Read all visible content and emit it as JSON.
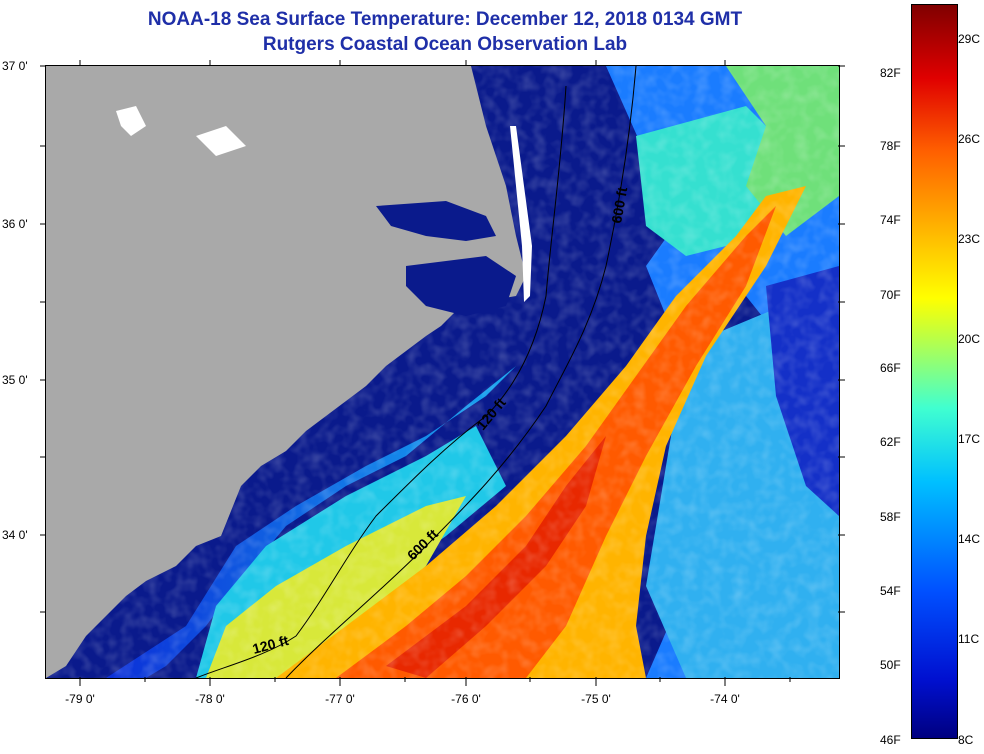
{
  "title": {
    "line1": "NOAA-18 Sea Surface Temperature:  December 12, 2018 0134 GMT",
    "line2": "Rutgers Coastal Ocean Observation Lab"
  },
  "axes": {
    "y_labels": [
      "37 0'",
      "36 0'",
      "35 0'",
      "34 0'"
    ],
    "x_labels": [
      "-79 0'",
      "-78 0'",
      "-77 0'",
      "-76 0'",
      "-75 0'",
      "-74 0'"
    ]
  },
  "contours": {
    "shallow_label": "120 ft",
    "deep_label": "600 ft"
  },
  "colorbar": {
    "fahrenheit": [
      "82F",
      "78F",
      "74F",
      "70F",
      "66F",
      "62F",
      "58F",
      "54F",
      "50F",
      "46F"
    ],
    "celsius": [
      "29C",
      "26C",
      "23C",
      "20C",
      "17C",
      "14C",
      "11C",
      "8C"
    ]
  },
  "colors": {
    "land": "#a9a9a9",
    "cold_water": "#0a1a8c",
    "gulf_stream": "#ff4a00",
    "title": "#1f2fa8"
  }
}
